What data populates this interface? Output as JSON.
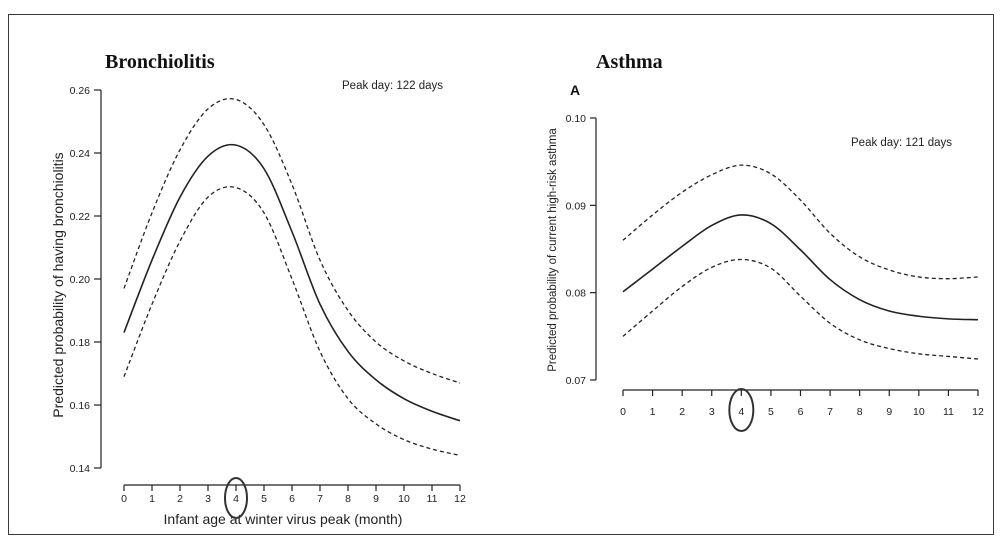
{
  "chart_data": [
    {
      "type": "line",
      "title": "Bronchiolitis",
      "annotation": "Peak day: 122 days",
      "xlabel": "Infant age at winter virus peak (month)",
      "ylabel": "Predicted probability of having bronchiolitis",
      "xlim": [
        0,
        12
      ],
      "ylim": [
        0.14,
        0.26
      ],
      "x_ticks": [
        0,
        1,
        2,
        3,
        4,
        5,
        6,
        7,
        8,
        9,
        10,
        11,
        12
      ],
      "y_ticks": [
        0.14,
        0.16,
        0.18,
        0.2,
        0.22,
        0.24,
        0.26
      ],
      "y_tick_labels": [
        "0.14",
        "0.16",
        "0.18",
        "0.20",
        "0.22",
        "0.24",
        "0.26"
      ],
      "highlighted_tick": 4,
      "x": [
        0,
        1,
        2,
        3,
        4,
        5,
        6,
        7,
        8,
        9,
        10,
        11,
        12
      ],
      "series": [
        {
          "style": "solid",
          "values": [
            0.183,
            0.206,
            0.226,
            0.239,
            0.2425,
            0.235,
            0.215,
            0.192,
            0.177,
            0.168,
            0.162,
            0.158,
            0.155
          ]
        },
        {
          "style": "dashed",
          "values": [
            0.197,
            0.221,
            0.241,
            0.254,
            0.257,
            0.249,
            0.23,
            0.206,
            0.19,
            0.18,
            0.174,
            0.17,
            0.167
          ]
        },
        {
          "style": "dashed",
          "values": [
            0.169,
            0.192,
            0.212,
            0.226,
            0.229,
            0.221,
            0.2,
            0.177,
            0.162,
            0.154,
            0.149,
            0.146,
            0.144
          ]
        }
      ]
    },
    {
      "type": "line",
      "title": "Asthma",
      "panel_label": "A",
      "annotation": "Peak day: 121 days",
      "xlabel": "",
      "ylabel": "Predicted probability of current high-risk asthma",
      "xlim": [
        0,
        12
      ],
      "ylim": [
        0.07,
        0.1
      ],
      "x_ticks": [
        0,
        1,
        2,
        3,
        4,
        5,
        6,
        7,
        8,
        9,
        10,
        11,
        12
      ],
      "y_ticks": [
        0.07,
        0.08,
        0.09,
        0.1
      ],
      "y_tick_labels": [
        "0.07",
        "0.08",
        "0.09",
        "0.10"
      ],
      "highlighted_tick": 4,
      "x": [
        0,
        1,
        2,
        3,
        4,
        5,
        6,
        7,
        8,
        9,
        10,
        11,
        12
      ],
      "series": [
        {
          "style": "solid",
          "values": [
            0.0801,
            0.0827,
            0.0853,
            0.0877,
            0.0889,
            0.0879,
            0.0849,
            0.0815,
            0.0792,
            0.0779,
            0.0773,
            0.077,
            0.0769
          ]
        },
        {
          "style": "dashed",
          "values": [
            0.086,
            0.0889,
            0.0915,
            0.0935,
            0.0946,
            0.0936,
            0.0906,
            0.0868,
            0.0841,
            0.0826,
            0.0818,
            0.0816,
            0.0818
          ]
        },
        {
          "style": "dashed",
          "values": [
            0.075,
            0.0779,
            0.0807,
            0.0829,
            0.0838,
            0.0828,
            0.0796,
            0.0765,
            0.0746,
            0.0736,
            0.073,
            0.0727,
            0.0724
          ]
        }
      ]
    }
  ]
}
